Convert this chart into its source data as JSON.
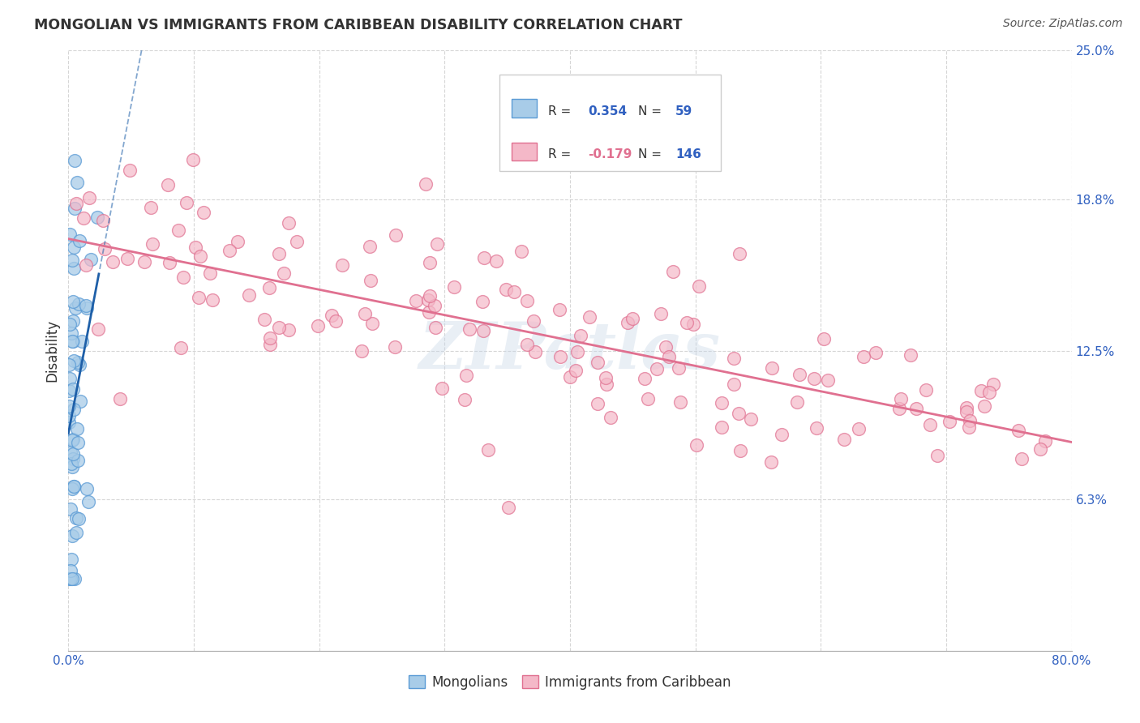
{
  "title": "MONGOLIAN VS IMMIGRANTS FROM CARIBBEAN DISABILITY CORRELATION CHART",
  "source": "Source: ZipAtlas.com",
  "ylabel": "Disability",
  "xlim": [
    0.0,
    0.8
  ],
  "ylim": [
    0.0,
    0.25
  ],
  "xtick_vals": [
    0.0,
    0.1,
    0.2,
    0.3,
    0.4,
    0.5,
    0.6,
    0.7,
    0.8
  ],
  "xtick_labels": [
    "0.0%",
    "",
    "",
    "",
    "",
    "",
    "",
    "",
    "80.0%"
  ],
  "ytick_positions": [
    0.063,
    0.125,
    0.188,
    0.25
  ],
  "ytick_labels": [
    "6.3%",
    "12.5%",
    "18.8%",
    "25.0%"
  ],
  "mongolian_fill": "#A8CCE8",
  "mongolian_edge": "#5B9BD5",
  "caribbean_fill": "#F4B8C8",
  "caribbean_edge": "#E07090",
  "blue_line_color": "#1E5FA8",
  "pink_line_color": "#E07090",
  "watermark": "ZIPatlas",
  "background_color": "#FFFFFF",
  "grid_color": "#CCCCCC",
  "mongolians_label": "Mongolians",
  "caribbean_label": "Immigrants from Caribbean",
  "title_color": "#333333",
  "source_color": "#555555",
  "tick_color": "#3060C0",
  "ylabel_color": "#333333",
  "legend_text_dark": "#333333",
  "legend_val_color": "#3060C0",
  "legend_r1_val": "0.354",
  "legend_r2_val": "-0.179",
  "legend_n1_val": "59",
  "legend_n2_val": "146"
}
